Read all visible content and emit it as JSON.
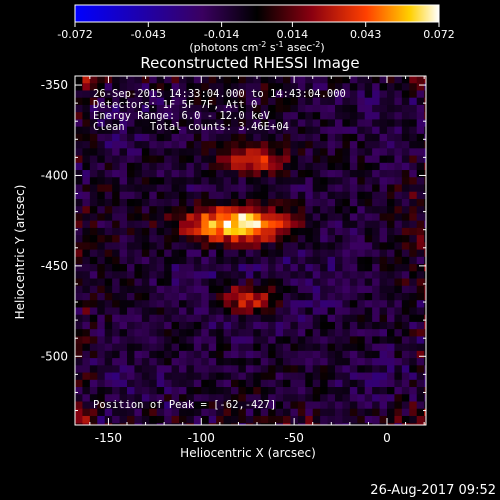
{
  "chart_data": {
    "type": "heatmap",
    "title": "Reconstructed RHESSI Image",
    "xlabel": "Heliocentric X (arcsec)",
    "ylabel": "Heliocentric Y (arcsec)",
    "xlim": [
      -168,
      21
    ],
    "ylim": [
      -538,
      -345
    ],
    "x_ticks": [
      "-150",
      "-100",
      "-50",
      "0"
    ],
    "x_tick_values": [
      -150,
      -100,
      -50,
      0
    ],
    "y_ticks": [
      "-350",
      "-400",
      "-450",
      "-500"
    ],
    "y_tick_values": [
      -350,
      -400,
      -450,
      -500
    ],
    "colorbar": {
      "ticks": [
        "-0.072",
        "-0.043",
        "-0.014",
        "0.014",
        "0.043",
        "0.072"
      ],
      "tick_values": [
        -0.072,
        -0.043,
        -0.014,
        0.014,
        0.043,
        0.072
      ],
      "range": [
        -0.072,
        0.072
      ],
      "unit_label_parts": {
        "a": "(photons cm",
        "b": "-2",
        "c": " s",
        "d": "-1",
        "e": " asec",
        "f": "-2",
        "g": ")"
      }
    },
    "info_lines": [
      "26-Sep-2015 14:33:04.000 to 14:43:04.000",
      "Detectors: 1F 5F 7F, Att 0",
      "Energy Range: 6.0 - 12.0 keV",
      "Clean    Total counts: 3.46E+04"
    ],
    "peak_label": "Position of Peak = [-62,-427]",
    "peak": {
      "x": -62,
      "y": -427
    },
    "sources": [
      {
        "x": -80,
        "y": -427,
        "sx": 22,
        "sy": 8,
        "amp": 1.0
      },
      {
        "x": -72,
        "y": -392,
        "sx": 14,
        "sy": 6,
        "amp": 0.55
      },
      {
        "x": -75,
        "y": -468,
        "sx": 12,
        "sy": 6,
        "amp": 0.6
      }
    ],
    "colors": {
      "low": "#0000ff",
      "mid": "#000000",
      "high": "#ffffff"
    }
  },
  "footer": {
    "timestamp": "26-Aug-2017 09:52"
  }
}
